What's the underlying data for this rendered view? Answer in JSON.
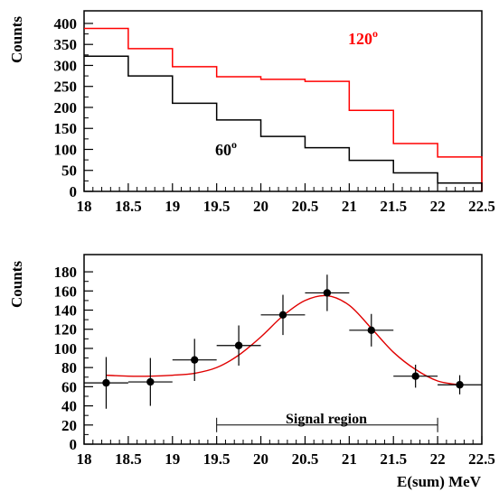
{
  "colors": {
    "frame": "#000000",
    "red_series": "#ff0000",
    "black_series": "#000000",
    "fit_curve": "#e00000"
  },
  "chart_data": [
    {
      "type": "step",
      "ylabel": "Counts",
      "xlim": [
        18,
        22.5
      ],
      "ylim": [
        0,
        430
      ],
      "x_ticks": [
        "18",
        "18.5",
        "19",
        "19.5",
        "20",
        "20.5",
        "21",
        "21.5",
        "22",
        "22.5"
      ],
      "y_ticks": [
        "0",
        "50",
        "100",
        "150",
        "200",
        "250",
        "300",
        "350",
        "400"
      ],
      "bin_edges": [
        18,
        18.5,
        19,
        19.5,
        20,
        20.5,
        21,
        21.5,
        22,
        22.5
      ],
      "series": [
        {
          "name": "120",
          "superscript": "o",
          "color": "#ff0000",
          "values": [
            388,
            340,
            297,
            273,
            267,
            262,
            193,
            114,
            82
          ]
        },
        {
          "name": "60",
          "superscript": "o",
          "color": "#000000",
          "values": [
            322,
            275,
            210,
            170,
            131,
            104,
            74,
            44,
            20
          ]
        }
      ]
    },
    {
      "type": "scatter",
      "xlabel": "E(sum) MeV",
      "ylabel": "Counts",
      "xlim": [
        18,
        22.5
      ],
      "ylim": [
        0,
        198
      ],
      "x_ticks": [
        "18",
        "18.5",
        "19",
        "19.5",
        "20",
        "20.5",
        "21",
        "21.5",
        "22",
        "22.5"
      ],
      "y_ticks": [
        "0",
        "20",
        "40",
        "60",
        "80",
        "100",
        "120",
        "140",
        "160",
        "180"
      ],
      "points": [
        {
          "x": 18.25,
          "y": 64,
          "xerr": 0.25,
          "yerr": 27
        },
        {
          "x": 18.75,
          "y": 65,
          "xerr": 0.25,
          "yerr": 25
        },
        {
          "x": 19.25,
          "y": 88,
          "xerr": 0.25,
          "yerr": 22
        },
        {
          "x": 19.75,
          "y": 103,
          "xerr": 0.25,
          "yerr": 21
        },
        {
          "x": 20.25,
          "y": 135,
          "xerr": 0.25,
          "yerr": 21
        },
        {
          "x": 20.75,
          "y": 158,
          "xerr": 0.25,
          "yerr": 19
        },
        {
          "x": 21.25,
          "y": 119,
          "xerr": 0.25,
          "yerr": 17
        },
        {
          "x": 21.75,
          "y": 71,
          "xerr": 0.25,
          "yerr": 12
        },
        {
          "x": 22.25,
          "y": 62,
          "xerr": 0.25,
          "yerr": 10
        }
      ],
      "fit": {
        "x": [
          18.25,
          18.5,
          18.75,
          19.0,
          19.25,
          19.5,
          19.75,
          20.0,
          20.25,
          20.5,
          20.75,
          21.0,
          21.25,
          21.5,
          21.75,
          22.0,
          22.25
        ],
        "y": [
          72,
          71,
          71,
          72,
          74,
          80,
          93,
          112,
          134,
          150,
          155,
          145,
          121,
          96,
          78,
          66,
          62
        ]
      },
      "signal_region": {
        "label": "Signal region",
        "x_range": [
          19.5,
          22.0
        ],
        "y": 20
      }
    }
  ]
}
